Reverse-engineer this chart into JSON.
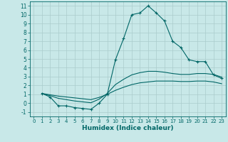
{
  "xlabel": "Humidex (Indice chaleur)",
  "bg_color": "#c8e8e8",
  "grid_color": "#aacccc",
  "line_color": "#006666",
  "xlim": [
    -0.5,
    23.5
  ],
  "ylim": [
    -1.5,
    11.5
  ],
  "xticks": [
    0,
    1,
    2,
    3,
    4,
    5,
    6,
    7,
    8,
    9,
    10,
    11,
    12,
    13,
    14,
    15,
    16,
    17,
    18,
    19,
    20,
    21,
    22,
    23
  ],
  "yticks": [
    -1,
    0,
    1,
    2,
    3,
    4,
    5,
    6,
    7,
    8,
    9,
    10,
    11
  ],
  "curves": [
    {
      "x": [
        1,
        2,
        3,
        4,
        5,
        6,
        7,
        8,
        9,
        10,
        11,
        12,
        13,
        14,
        15,
        16,
        17,
        18,
        19,
        20,
        21,
        22,
        23
      ],
      "y": [
        1.1,
        0.7,
        -0.3,
        -0.3,
        -0.5,
        -0.6,
        -0.7,
        0.0,
        1.0,
        4.9,
        7.3,
        10.0,
        10.2,
        11.0,
        10.2,
        9.3,
        7.0,
        6.3,
        4.9,
        4.7,
        4.7,
        3.2,
        2.8
      ],
      "marker": "+"
    },
    {
      "x": [
        1,
        2,
        3,
        4,
        5,
        6,
        7,
        8,
        9,
        10,
        11,
        12,
        13,
        14,
        15,
        16,
        17,
        18,
        19,
        20,
        21,
        22,
        23
      ],
      "y": [
        1.1,
        0.85,
        0.55,
        0.4,
        0.25,
        0.15,
        0.05,
        0.45,
        1.1,
        2.1,
        2.7,
        3.2,
        3.45,
        3.6,
        3.6,
        3.5,
        3.35,
        3.25,
        3.25,
        3.35,
        3.35,
        3.25,
        2.95
      ],
      "marker": null
    },
    {
      "x": [
        1,
        2,
        3,
        4,
        5,
        6,
        7,
        8,
        9,
        10,
        11,
        12,
        13,
        14,
        15,
        16,
        17,
        18,
        19,
        20,
        21,
        22,
        23
      ],
      "y": [
        1.1,
        0.95,
        0.8,
        0.7,
        0.6,
        0.5,
        0.4,
        0.65,
        1.0,
        1.45,
        1.8,
        2.1,
        2.3,
        2.4,
        2.5,
        2.5,
        2.5,
        2.45,
        2.45,
        2.5,
        2.5,
        2.4,
        2.2
      ],
      "marker": null
    }
  ]
}
